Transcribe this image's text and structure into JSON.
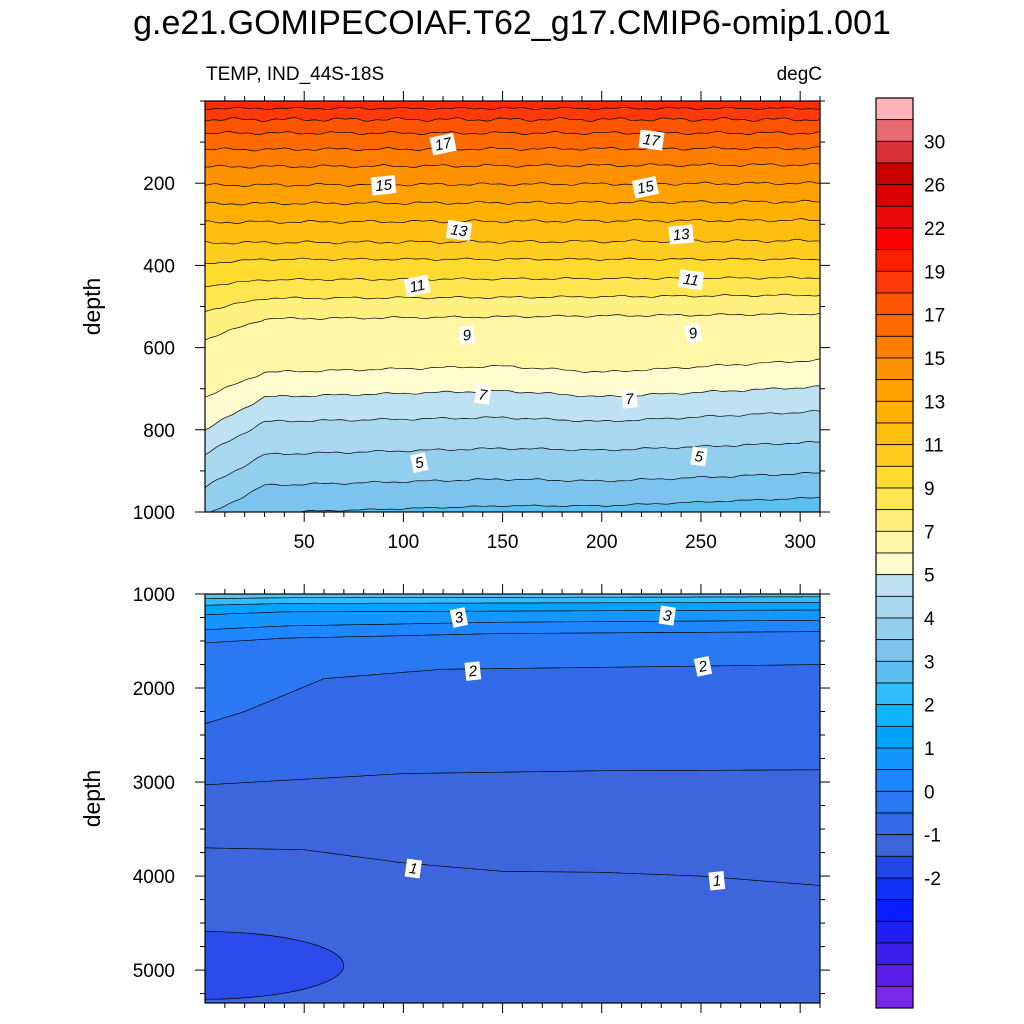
{
  "title": "g.e21.GOMIPECOIAF.T62_g17.CMIP6-omip1.001",
  "subtitle_left": "TEMP, IND_44S-18S",
  "subtitle_right": "degC",
  "chart_data": [
    {
      "type": "heatmap",
      "panel": "upper",
      "variable": "TEMP",
      "region": "IND_44S-18S",
      "units": "degC",
      "xlabel": "",
      "ylabel": "depth",
      "xlim": [
        0,
        310
      ],
      "ylim": [
        1000,
        0
      ],
      "xticks": [
        50,
        100,
        150,
        200,
        250,
        300
      ],
      "yticks": [
        200,
        400,
        600,
        800,
        1000
      ],
      "contour_labels": [
        {
          "value": "17",
          "x": 120,
          "depth": 105
        },
        {
          "value": "17",
          "x": 225,
          "depth": 95
        },
        {
          "value": "15",
          "x": 90,
          "depth": 205
        },
        {
          "value": "15",
          "x": 222,
          "depth": 210
        },
        {
          "value": "13",
          "x": 128,
          "depth": 315
        },
        {
          "value": "13",
          "x": 240,
          "depth": 325
        },
        {
          "value": "11",
          "x": 107,
          "depth": 450
        },
        {
          "value": "11",
          "x": 245,
          "depth": 435
        },
        {
          "value": "9",
          "x": 132,
          "depth": 570
        },
        {
          "value": "9",
          "x": 246,
          "depth": 565
        },
        {
          "value": "7",
          "x": 140,
          "depth": 715
        },
        {
          "value": "7",
          "x": 214,
          "depth": 725
        },
        {
          "value": "5",
          "x": 108,
          "depth": 880
        },
        {
          "value": "5",
          "x": 249,
          "depth": 865
        }
      ]
    },
    {
      "type": "heatmap",
      "panel": "lower",
      "variable": "TEMP",
      "units": "degC",
      "xlabel": "",
      "ylabel": "depth",
      "xlim": [
        0,
        310
      ],
      "ylim": [
        5350,
        1000
      ],
      "yticks": [
        1000,
        2000,
        3000,
        4000,
        5000
      ],
      "contour_labels": [
        {
          "value": "3",
          "x": 128,
          "depth": 1250
        },
        {
          "value": "3",
          "x": 233,
          "depth": 1230
        },
        {
          "value": "2",
          "x": 135,
          "depth": 1820
        },
        {
          "value": "2",
          "x": 251,
          "depth": 1770
        },
        {
          "value": "1",
          "x": 105,
          "depth": 3920
        },
        {
          "value": "1",
          "x": 258,
          "depth": 4050
        }
      ]
    }
  ],
  "colorbar": {
    "labels": [
      "30",
      "26",
      "22",
      "19",
      "17",
      "15",
      "13",
      "11",
      "9",
      "7",
      "5",
      "4",
      "3",
      "2",
      "1",
      "0",
      "-1",
      "-2"
    ],
    "colors": [
      "#FFB3B8",
      "#E86A70",
      "#D83035",
      "#C80000",
      "#DC0000",
      "#EB0A0A",
      "#FF0000",
      "#FF1F00",
      "#FF3A0A",
      "#FF5500",
      "#FF6A00",
      "#FF7E00",
      "#FF9200",
      "#FFA200",
      "#FFB000",
      "#FFBE10",
      "#FFCC20",
      "#FFDB30",
      "#FFE650",
      "#FFF080",
      "#FFF6A8",
      "#FFFCCF",
      "#BEE2F2",
      "#A8D8F0",
      "#92CEEE",
      "#7CC4EE",
      "#5CBFF0",
      "#30BEFF",
      "#0FB5FF",
      "#00A4FF",
      "#1496FF",
      "#1E87FF",
      "#2A78F2",
      "#3169E6",
      "#3D66DD",
      "#2248E6",
      "#0F32F5",
      "#0A1EFF",
      "#1E1EF5",
      "#3C1EEB",
      "#5A1EE8",
      "#7828E6"
    ]
  }
}
